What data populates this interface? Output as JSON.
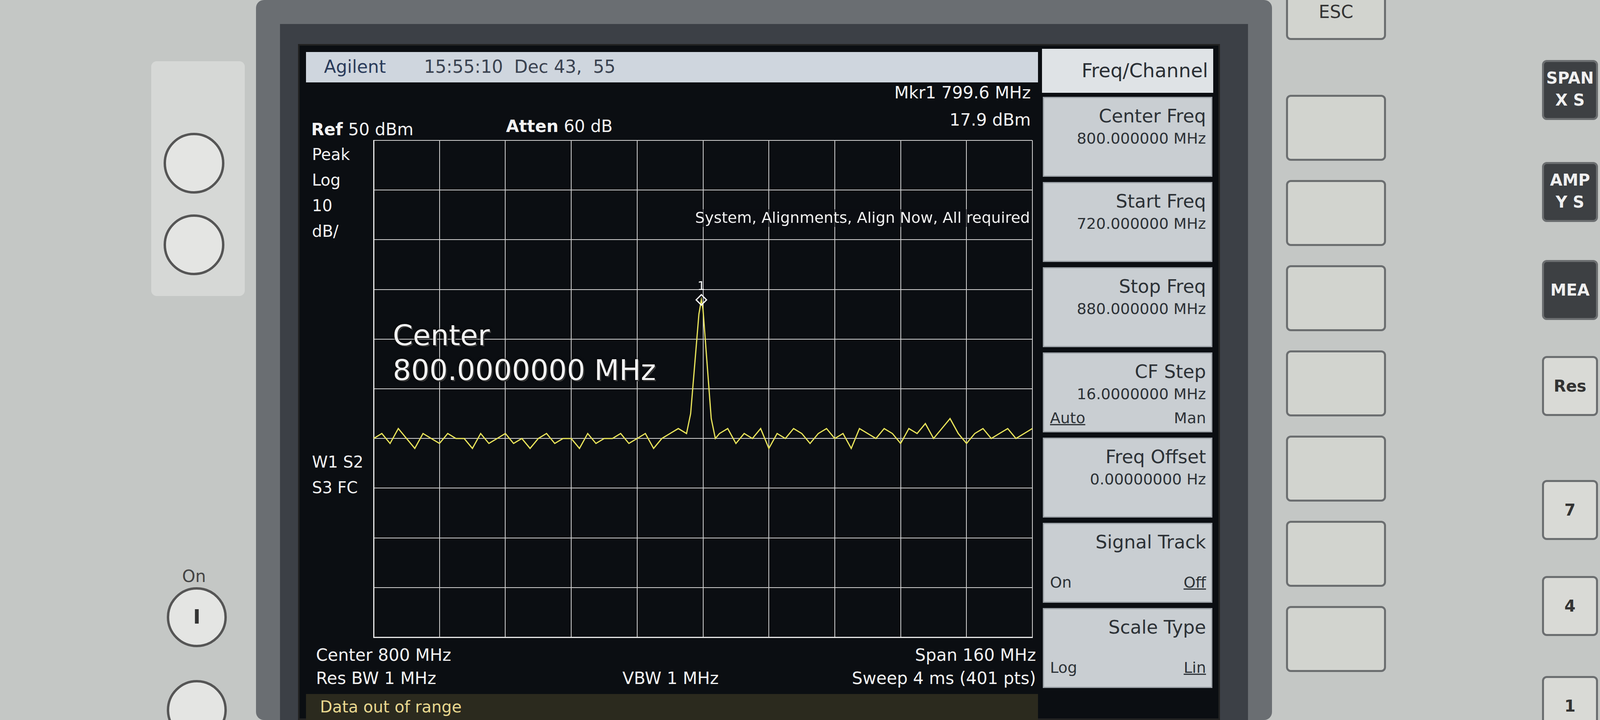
{
  "header": {
    "brand": "Agilent",
    "datetime": "15:55:10  Dec 43,  55"
  },
  "marker_readout": [
    "Mkr1 799.6 MHz",
    "17.9 dBm"
  ],
  "ref": {
    "label": "Ref",
    "value": "50 dBm"
  },
  "atten": {
    "label": "Atten",
    "value": "60 dB"
  },
  "scale_info": [
    "Peak",
    "Log",
    "10",
    "dB/"
  ],
  "trace_info": [
    "W1 S2",
    "S3 FC"
  ],
  "message": "System, Alignments, Align Now, All required",
  "active_entry": [
    "Center",
    "800.0000000 MHz"
  ],
  "footer": {
    "left": [
      "Center 800 MHz",
      "Res BW 1 MHz"
    ],
    "middle": "VBW 1 MHz",
    "right": [
      "Span 160 MHz",
      "Sweep 4 ms (401 pts)"
    ]
  },
  "status": "Data out of range",
  "softkeys": {
    "menu_title": "Freq/Channel",
    "keys": [
      {
        "title": "Center Freq",
        "value": "800.000000 MHz"
      },
      {
        "title": "Start Freq",
        "value": "720.000000 MHz"
      },
      {
        "title": "Stop Freq",
        "value": "880.000000 MHz"
      },
      {
        "title": "CF Step",
        "value": "16.0000000 MHz",
        "options": [
          "Auto",
          "Man"
        ],
        "selected": "Auto"
      },
      {
        "title": "Freq Offset",
        "value": "0.00000000 Hz"
      },
      {
        "title": "Signal Track",
        "options": [
          "On",
          "Off"
        ],
        "selected": "Off"
      },
      {
        "title": "Scale Type",
        "options": [
          "Log",
          "Lin"
        ],
        "selected": "Lin"
      }
    ]
  },
  "front_panel": {
    "escape": "ESC",
    "hardkeys": [
      [
        "SPAN",
        "X S"
      ],
      [
        "AMP",
        "Y S"
      ],
      [
        "MEA"
      ],
      [
        "Res"
      ],
      [
        "7"
      ],
      [
        "4"
      ],
      [
        "1"
      ]
    ],
    "power": [
      "On",
      "I"
    ]
  },
  "chart_data": {
    "type": "line",
    "color": "#e8e35a",
    "x": [
      720,
      722,
      724,
      726,
      728,
      730,
      732,
      734,
      736,
      738,
      740,
      742,
      744,
      746,
      748,
      750,
      752,
      754,
      756,
      758,
      760,
      762,
      764,
      766,
      768,
      770,
      772,
      774,
      776,
      778,
      780,
      782,
      784,
      786,
      788,
      790,
      792,
      794,
      796,
      797,
      798,
      799,
      799.6,
      800,
      801,
      802,
      803,
      804,
      806,
      808,
      810,
      812,
      814,
      816,
      818,
      820,
      822,
      824,
      826,
      828,
      830,
      832,
      834,
      836,
      838,
      840,
      842,
      844,
      846,
      848,
      850,
      852,
      854,
      856,
      858,
      860,
      862,
      864,
      866,
      868,
      870,
      872,
      874,
      876,
      878,
      880
    ],
    "values": [
      -10,
      -9,
      -11,
      -8,
      -10,
      -12,
      -9,
      -10,
      -11,
      -9,
      -10,
      -10,
      -12,
      -9,
      -11,
      -10,
      -9,
      -11,
      -10,
      -12,
      -10,
      -9,
      -11,
      -10,
      -10,
      -12,
      -9,
      -11,
      -10,
      -10,
      -9,
      -11,
      -10,
      -9,
      -12,
      -10,
      -9,
      -8,
      -9,
      -5,
      5,
      15,
      17.9,
      16,
      5,
      -6,
      -10,
      -9,
      -8,
      -11,
      -9,
      -10,
      -8,
      -12,
      -9,
      -10,
      -8,
      -9,
      -11,
      -9,
      -8,
      -10,
      -9,
      -12,
      -8,
      -9,
      -10,
      -8,
      -9,
      -11,
      -8,
      -9,
      -7,
      -10,
      -8,
      -6,
      -9,
      -11,
      -9,
      -8,
      -10,
      -9,
      -8,
      -10,
      -9,
      -8
    ],
    "xlim": [
      720,
      880
    ],
    "xticks": [
      720,
      736,
      752,
      768,
      784,
      800,
      816,
      832,
      848,
      864,
      880
    ],
    "ylim": [
      -50,
      50
    ],
    "yticks": [
      -50,
      -40,
      -30,
      -20,
      -10,
      0,
      10,
      20,
      30,
      40,
      50
    ],
    "grid": true,
    "tick_labels": false,
    "peak_marker": {
      "label": "1",
      "x": 799.6,
      "y": 17.9
    }
  }
}
